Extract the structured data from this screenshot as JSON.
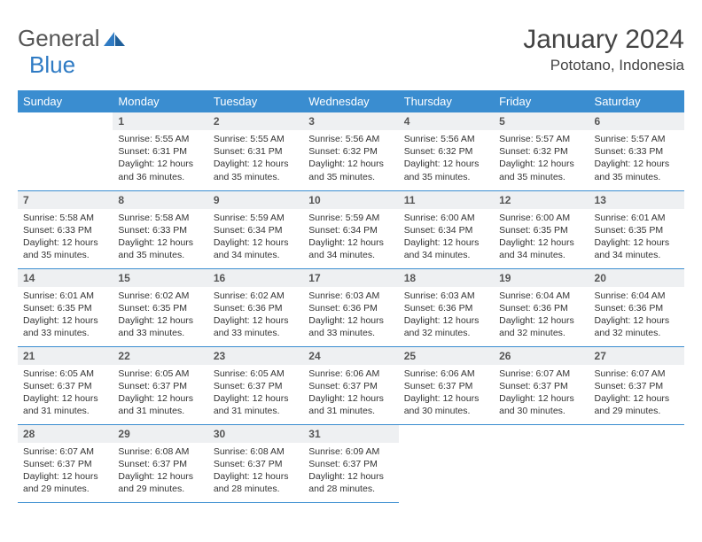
{
  "brand": {
    "part1": "General",
    "part2": "Blue"
  },
  "title": "January 2024",
  "location": "Pototano, Indonesia",
  "colors": {
    "header_bg": "#3a8dd0",
    "header_fg": "#ffffff",
    "daynum_bg": "#eef0f2",
    "border": "#3a8dd0",
    "brand_gray": "#555555",
    "brand_blue": "#2f7bc4",
    "text": "#333333",
    "page_bg": "#ffffff"
  },
  "typography": {
    "title_fontsize": 30,
    "location_fontsize": 17,
    "dayheader_fontsize": 13,
    "daynum_fontsize": 12,
    "body_fontsize": 10.5
  },
  "calendar": {
    "type": "table",
    "columns": [
      "Sunday",
      "Monday",
      "Tuesday",
      "Wednesday",
      "Thursday",
      "Friday",
      "Saturday"
    ],
    "first_weekday_index": 1,
    "days": [
      {
        "n": 1,
        "sunrise": "5:55 AM",
        "sunset": "6:31 PM",
        "daylight": "12 hours and 36 minutes."
      },
      {
        "n": 2,
        "sunrise": "5:55 AM",
        "sunset": "6:31 PM",
        "daylight": "12 hours and 35 minutes."
      },
      {
        "n": 3,
        "sunrise": "5:56 AM",
        "sunset": "6:32 PM",
        "daylight": "12 hours and 35 minutes."
      },
      {
        "n": 4,
        "sunrise": "5:56 AM",
        "sunset": "6:32 PM",
        "daylight": "12 hours and 35 minutes."
      },
      {
        "n": 5,
        "sunrise": "5:57 AM",
        "sunset": "6:32 PM",
        "daylight": "12 hours and 35 minutes."
      },
      {
        "n": 6,
        "sunrise": "5:57 AM",
        "sunset": "6:33 PM",
        "daylight": "12 hours and 35 minutes."
      },
      {
        "n": 7,
        "sunrise": "5:58 AM",
        "sunset": "6:33 PM",
        "daylight": "12 hours and 35 minutes."
      },
      {
        "n": 8,
        "sunrise": "5:58 AM",
        "sunset": "6:33 PM",
        "daylight": "12 hours and 35 minutes."
      },
      {
        "n": 9,
        "sunrise": "5:59 AM",
        "sunset": "6:34 PM",
        "daylight": "12 hours and 34 minutes."
      },
      {
        "n": 10,
        "sunrise": "5:59 AM",
        "sunset": "6:34 PM",
        "daylight": "12 hours and 34 minutes."
      },
      {
        "n": 11,
        "sunrise": "6:00 AM",
        "sunset": "6:34 PM",
        "daylight": "12 hours and 34 minutes."
      },
      {
        "n": 12,
        "sunrise": "6:00 AM",
        "sunset": "6:35 PM",
        "daylight": "12 hours and 34 minutes."
      },
      {
        "n": 13,
        "sunrise": "6:01 AM",
        "sunset": "6:35 PM",
        "daylight": "12 hours and 34 minutes."
      },
      {
        "n": 14,
        "sunrise": "6:01 AM",
        "sunset": "6:35 PM",
        "daylight": "12 hours and 33 minutes."
      },
      {
        "n": 15,
        "sunrise": "6:02 AM",
        "sunset": "6:35 PM",
        "daylight": "12 hours and 33 minutes."
      },
      {
        "n": 16,
        "sunrise": "6:02 AM",
        "sunset": "6:36 PM",
        "daylight": "12 hours and 33 minutes."
      },
      {
        "n": 17,
        "sunrise": "6:03 AM",
        "sunset": "6:36 PM",
        "daylight": "12 hours and 33 minutes."
      },
      {
        "n": 18,
        "sunrise": "6:03 AM",
        "sunset": "6:36 PM",
        "daylight": "12 hours and 32 minutes."
      },
      {
        "n": 19,
        "sunrise": "6:04 AM",
        "sunset": "6:36 PM",
        "daylight": "12 hours and 32 minutes."
      },
      {
        "n": 20,
        "sunrise": "6:04 AM",
        "sunset": "6:36 PM",
        "daylight": "12 hours and 32 minutes."
      },
      {
        "n": 21,
        "sunrise": "6:05 AM",
        "sunset": "6:37 PM",
        "daylight": "12 hours and 31 minutes."
      },
      {
        "n": 22,
        "sunrise": "6:05 AM",
        "sunset": "6:37 PM",
        "daylight": "12 hours and 31 minutes."
      },
      {
        "n": 23,
        "sunrise": "6:05 AM",
        "sunset": "6:37 PM",
        "daylight": "12 hours and 31 minutes."
      },
      {
        "n": 24,
        "sunrise": "6:06 AM",
        "sunset": "6:37 PM",
        "daylight": "12 hours and 31 minutes."
      },
      {
        "n": 25,
        "sunrise": "6:06 AM",
        "sunset": "6:37 PM",
        "daylight": "12 hours and 30 minutes."
      },
      {
        "n": 26,
        "sunrise": "6:07 AM",
        "sunset": "6:37 PM",
        "daylight": "12 hours and 30 minutes."
      },
      {
        "n": 27,
        "sunrise": "6:07 AM",
        "sunset": "6:37 PM",
        "daylight": "12 hours and 29 minutes."
      },
      {
        "n": 28,
        "sunrise": "6:07 AM",
        "sunset": "6:37 PM",
        "daylight": "12 hours and 29 minutes."
      },
      {
        "n": 29,
        "sunrise": "6:08 AM",
        "sunset": "6:37 PM",
        "daylight": "12 hours and 29 minutes."
      },
      {
        "n": 30,
        "sunrise": "6:08 AM",
        "sunset": "6:37 PM",
        "daylight": "12 hours and 28 minutes."
      },
      {
        "n": 31,
        "sunrise": "6:09 AM",
        "sunset": "6:37 PM",
        "daylight": "12 hours and 28 minutes."
      }
    ],
    "labels": {
      "sunrise_prefix": "Sunrise: ",
      "sunset_prefix": "Sunset: ",
      "daylight_prefix": "Daylight: "
    }
  }
}
